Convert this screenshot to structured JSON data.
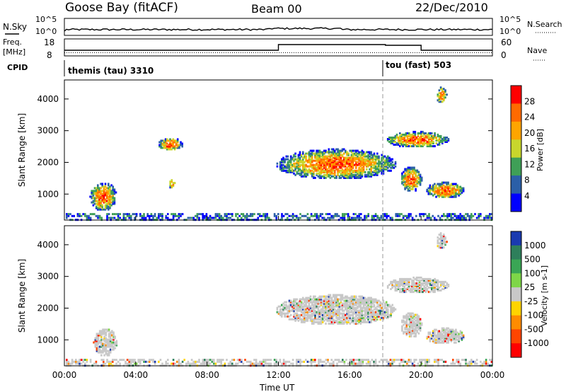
{
  "header": {
    "station": "Goose Bay (fitACF)",
    "beam": "Beam 00",
    "date": "22/Dec/2010"
  },
  "top_panels": {
    "nsky_label": "N.Sky",
    "nsky_ticks": [
      "10^5",
      "10^0"
    ],
    "nsearch_label": "N.Search",
    "nsearch_ticks": [
      "10^5",
      "10^0"
    ],
    "freq_label": "Freq.",
    "freq_unit": "[MHz]",
    "freq_ticks": [
      "18",
      "8"
    ],
    "nave_label": "Nave",
    "nave_ticks": [
      "60",
      "0"
    ],
    "cpid_label": "CPID",
    "cpid_segments": [
      {
        "label": "themis (tau) 3310",
        "start_hour": 0
      },
      {
        "label": "tou (fast) 503",
        "start_hour": 18
      }
    ],
    "freq_series": {
      "hours": [
        0,
        12,
        12,
        18,
        18,
        20,
        20,
        24
      ],
      "values": [
        11,
        11,
        15,
        15,
        14.5,
        14.5,
        11,
        11
      ]
    },
    "nave_level": 8
  },
  "chart_data": [
    {
      "type": "heatmap",
      "title": "Power",
      "ylabel": "Slant Range [km]",
      "colorbar_label": "Power [dB]",
      "colorbar_ticks": [
        "28",
        "24",
        "20",
        "16",
        "12",
        "8",
        "4"
      ],
      "colorbar_colors": [
        "#ff0000",
        "#ff6a00",
        "#ffa500",
        "#c8d62c",
        "#3f9f57",
        "#2b5fa8",
        "#0000ff"
      ],
      "ylim": [
        180,
        4600
      ],
      "yticks": [
        "1000",
        "2000",
        "3000",
        "4000"
      ],
      "xlim": [
        0,
        24
      ],
      "blobs": [
        {
          "t0": 1.4,
          "t1": 2.9,
          "r0": 500,
          "r1": 1400
        },
        {
          "t0": 11.8,
          "t1": 18.6,
          "r0": 1500,
          "r1": 2450
        },
        {
          "t0": 18.0,
          "t1": 21.5,
          "r0": 2500,
          "r1": 3000
        },
        {
          "t0": 18.8,
          "t1": 20.0,
          "r0": 1100,
          "r1": 1900
        },
        {
          "t0": 20.2,
          "t1": 22.4,
          "r0": 900,
          "r1": 1400
        },
        {
          "t0": 20.8,
          "t1": 21.4,
          "r0": 3900,
          "r1": 4400
        },
        {
          "t0": 5.8,
          "t1": 6.2,
          "r0": 1200,
          "r1": 1500
        },
        {
          "t0": 5.2,
          "t1": 6.6,
          "r0": 2400,
          "r1": 2800
        }
      ]
    },
    {
      "type": "heatmap",
      "title": "Velocity",
      "ylabel": "Slant Range [km]",
      "colorbar_label": "Velocity [m s-1]",
      "colorbar_ticks": [
        "1000",
        "500",
        "100",
        "25",
        "-25",
        "-100",
        "-500",
        "-1000"
      ],
      "colorbar_colors": [
        "#1a3ab0",
        "#2e7f5b",
        "#3aa655",
        "#7ed648",
        "#c8c8c8",
        "#ffd400",
        "#ff8c00",
        "#ff4500",
        "#ff0000"
      ],
      "ylim": [
        180,
        4600
      ],
      "yticks": [
        "1000",
        "2000",
        "3000",
        "4000"
      ],
      "xlim": [
        0,
        24
      ],
      "blobs": [
        {
          "t0": 1.6,
          "t1": 2.9,
          "r0": 500,
          "r1": 1400
        },
        {
          "t0": 11.8,
          "t1": 18.6,
          "r0": 1500,
          "r1": 2450
        },
        {
          "t0": 18.0,
          "t1": 21.5,
          "r0": 2500,
          "r1": 3000
        },
        {
          "t0": 18.8,
          "t1": 20.0,
          "r0": 1100,
          "r1": 1900
        },
        {
          "t0": 20.2,
          "t1": 22.4,
          "r0": 900,
          "r1": 1400
        },
        {
          "t0": 20.8,
          "t1": 21.4,
          "r0": 3900,
          "r1": 4400
        }
      ]
    }
  ],
  "xaxis": {
    "ticks": [
      "00:00",
      "04:00",
      "08:00",
      "12:00",
      "16:00",
      "20:00",
      "00:00"
    ],
    "label": "Time UT"
  }
}
